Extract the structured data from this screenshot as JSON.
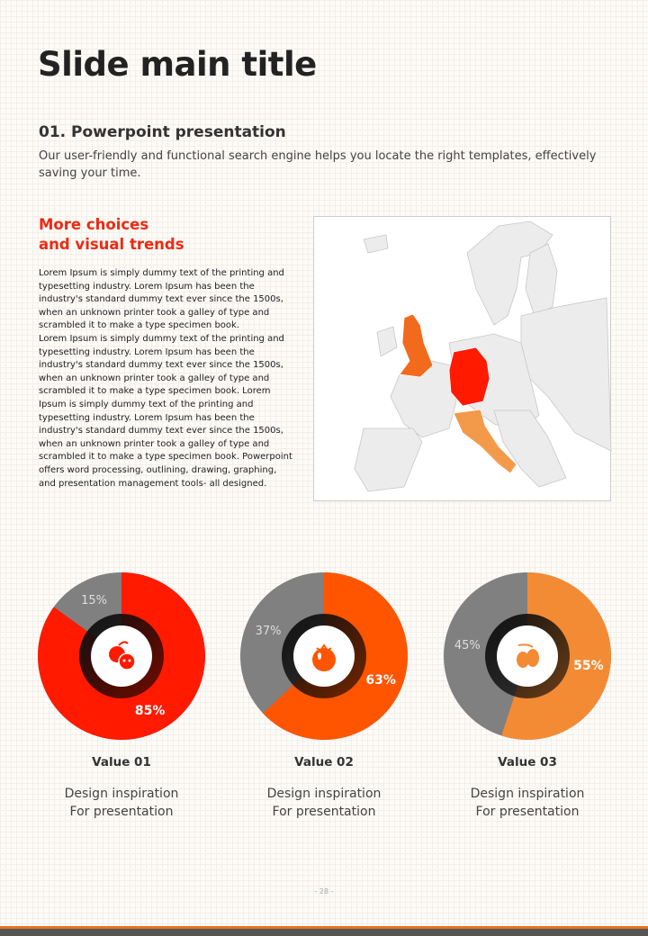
{
  "title": "Slide main title",
  "section": {
    "heading": "01. Powerpoint presentation",
    "text": "Our user-friendly and functional search engine helps you locate the right templates, effectively saving your time."
  },
  "feature": {
    "heading_line1": "More choices",
    "heading_line2": "and visual trends",
    "body": "Lorem Ipsum is simply dummy text of the printing and typesetting industry. Lorem Ipsum has been the industry's standard dummy text ever since the 1500s, when an unknown printer took a galley of type and scrambled it to make a type specimen book.\nLorem Ipsum is simply dummy text of the printing and typesetting industry.  Lorem Ipsum has been the industry's standard dummy text ever since the 1500s, when an unknown printer took a galley of type and scrambled it to make a type specimen book. Lorem Ipsum is simply dummy text of the printing and typesetting industry. Lorem Ipsum has been the industry's standard dummy text ever since the 1500s, when an unknown printer took a galley of type and scrambled it to make a type specimen book. Powerpoint offers word processing, outlining, drawing, graphing, and presentation management tools- all designed."
  },
  "map": {
    "highlighted": [
      {
        "country": "United Kingdom",
        "color": "#f26a1b"
      },
      {
        "country": "Germany",
        "color": "#ff1a00"
      },
      {
        "country": "Italy",
        "color": "#f39a4a"
      }
    ],
    "land_color": "#ececec"
  },
  "chart_data": [
    {
      "type": "pie",
      "style": "donut",
      "values": [
        85,
        15
      ],
      "labels": [
        "85%",
        "15%"
      ],
      "colors": [
        "#ff1a00",
        "#808080"
      ],
      "icon": "apple-icon",
      "title": "Value 01",
      "description": "Design inspiration\nFor presentation"
    },
    {
      "type": "pie",
      "style": "donut",
      "values": [
        63,
        37
      ],
      "labels": [
        "63%",
        "37%"
      ],
      "colors": [
        "#ff5500",
        "#808080"
      ],
      "icon": "tomato-icon",
      "title": "Value 02",
      "description": "Design inspiration\nFor presentation"
    },
    {
      "type": "pie",
      "style": "donut",
      "values": [
        55,
        45
      ],
      "labels": [
        "55%",
        "45%"
      ],
      "colors": [
        "#f38b35",
        "#808080"
      ],
      "icon": "plum-icon",
      "title": "Value 03",
      "description": "Design inspiration\nFor presentation"
    }
  ],
  "page_number": "- 28 -"
}
